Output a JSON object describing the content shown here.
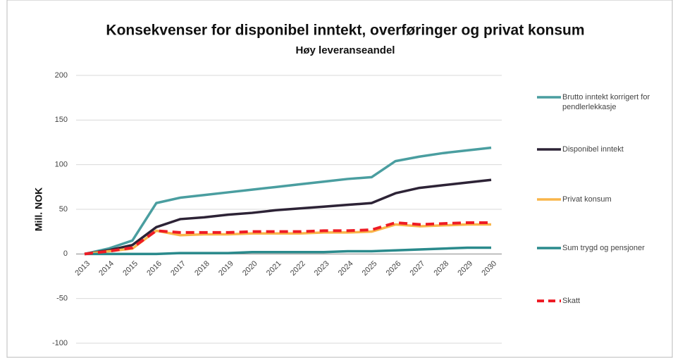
{
  "chart_data": {
    "type": "line",
    "title": "Konsekvenser for disponibel inntekt, overføringer og privat konsum",
    "subtitle": "Høy leveranseandel",
    "y_label": "Mill. NOK",
    "categories": [
      "2013",
      "2014",
      "2015",
      "2016",
      "2017",
      "2018",
      "2019",
      "2020",
      "2021",
      "2022",
      "2023",
      "2024",
      "2025",
      "2026",
      "2027",
      "2028",
      "2029",
      "2030"
    ],
    "series": [
      {
        "name": "Brutto inntekt korrigert for pendlerlekkasje",
        "color": "#4a9ea0",
        "values": [
          0,
          6,
          15,
          57,
          63,
          66,
          69,
          72,
          75,
          78,
          81,
          84,
          86,
          104,
          109,
          113,
          116,
          119
        ]
      },
      {
        "name": "Disponibel inntekt",
        "color": "#2d2336",
        "values": [
          0,
          4,
          10,
          30,
          39,
          41,
          44,
          46,
          49,
          51,
          53,
          55,
          57,
          68,
          74,
          77,
          80,
          83
        ]
      },
      {
        "name": "Privat konsum",
        "color": "#f9b54a",
        "values": [
          0,
          3,
          6,
          26,
          21,
          22,
          22,
          23,
          23,
          23,
          24,
          24,
          25,
          33,
          31,
          32,
          33,
          33
        ]
      },
      {
        "name": "Sum trygd og pensjoner",
        "color": "#2a8a8c",
        "values": [
          0,
          0,
          0,
          0,
          1,
          1,
          1,
          2,
          2,
          2,
          2,
          3,
          3,
          4,
          5,
          6,
          7,
          7
        ]
      },
      {
        "name": "Skatt",
        "color": "#ee1c25",
        "dashed": true,
        "values": [
          0,
          3,
          7,
          26,
          24,
          24,
          24,
          25,
          25,
          25,
          26,
          26,
          27,
          35,
          33,
          34,
          35,
          35
        ]
      }
    ],
    "ylim": [
      -100,
      200
    ],
    "yticks": [
      -100,
      -50,
      0,
      50,
      100,
      150,
      200
    ],
    "grid": true,
    "legend": "right"
  }
}
